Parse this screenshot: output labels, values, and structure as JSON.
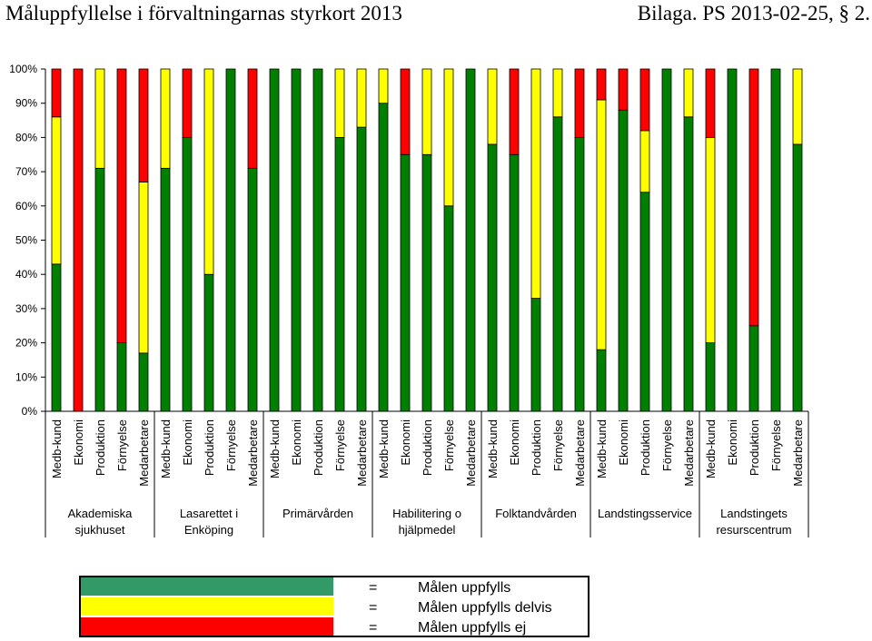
{
  "header": {
    "title": "Måluppfyllelse i förvaltningarnas styrkort 2013",
    "bilaga": "Bilaga. PS 2013-02-25, § 2."
  },
  "chart_data": {
    "type": "bar",
    "stacked": true,
    "y_ticks": [
      "0%",
      "10%",
      "20%",
      "30%",
      "40%",
      "50%",
      "60%",
      "70%",
      "80%",
      "90%",
      "100%"
    ],
    "ylim": [
      0,
      100
    ],
    "grid": false,
    "colors": {
      "green": "#007f00",
      "yellow": "#ffff00",
      "red": "#ff0000"
    },
    "groups": [
      {
        "label": [
          "Akademiska",
          "sjukhuset"
        ],
        "bars": [
          {
            "category": "Medb-kund",
            "green": 43,
            "yellow": 43,
            "red": 14
          },
          {
            "category": "Ekonomi",
            "green": 0,
            "yellow": 0,
            "red": 100
          },
          {
            "category": "Produktion",
            "green": 71,
            "yellow": 29,
            "red": 0
          },
          {
            "category": "Förnyelse",
            "green": 20,
            "yellow": 0,
            "red": 80
          },
          {
            "category": "Medarbetare",
            "green": 17,
            "yellow": 50,
            "red": 33
          }
        ]
      },
      {
        "label": [
          "Lasarettet i",
          "Enköping"
        ],
        "bars": [
          {
            "category": "Medb-kund",
            "green": 71,
            "yellow": 29,
            "red": 0
          },
          {
            "category": "Ekonomi",
            "green": 80,
            "yellow": 0,
            "red": 20
          },
          {
            "category": "Produktion",
            "green": 40,
            "yellow": 60,
            "red": 0
          },
          {
            "category": "Förnyelse",
            "green": 100,
            "yellow": 0,
            "red": 0
          },
          {
            "category": "Medarbetare",
            "green": 71,
            "yellow": 0,
            "red": 29
          }
        ]
      },
      {
        "label": [
          "Primärvården"
        ],
        "bars": [
          {
            "category": "Medb-kund",
            "green": 100,
            "yellow": 0,
            "red": 0
          },
          {
            "category": "Ekonomi",
            "green": 100,
            "yellow": 0,
            "red": 0
          },
          {
            "category": "Produktion",
            "green": 100,
            "yellow": 0,
            "red": 0
          },
          {
            "category": "Förnyelse",
            "green": 80,
            "yellow": 20,
            "red": 0
          },
          {
            "category": "Medarbetare",
            "green": 83,
            "yellow": 17,
            "red": 0
          }
        ]
      },
      {
        "label": [
          "Habilitering o",
          "hjälpmedel"
        ],
        "bars": [
          {
            "category": "Medb-kund",
            "green": 90,
            "yellow": 10,
            "red": 0
          },
          {
            "category": "Ekonomi",
            "green": 75,
            "yellow": 0,
            "red": 25
          },
          {
            "category": "Produktion",
            "green": 75,
            "yellow": 25,
            "red": 0
          },
          {
            "category": "Förnyelse",
            "green": 60,
            "yellow": 40,
            "red": 0
          },
          {
            "category": "Medarbetare",
            "green": 100,
            "yellow": 0,
            "red": 0
          }
        ]
      },
      {
        "label": [
          "Folktandvården"
        ],
        "bars": [
          {
            "category": "Medb-kund",
            "green": 78,
            "yellow": 22,
            "red": 0
          },
          {
            "category": "Ekonomi",
            "green": 75,
            "yellow": 0,
            "red": 25
          },
          {
            "category": "Produktion",
            "green": 33,
            "yellow": 67,
            "red": 0
          },
          {
            "category": "Förnyelse",
            "green": 86,
            "yellow": 14,
            "red": 0
          },
          {
            "category": "Medarbetare",
            "green": 80,
            "yellow": 0,
            "red": 20
          }
        ]
      },
      {
        "label": [
          "Landstingsservice"
        ],
        "bars": [
          {
            "category": "Medb-kund",
            "green": 18,
            "yellow": 73,
            "red": 9
          },
          {
            "category": "Ekonomi",
            "green": 88,
            "yellow": 0,
            "red": 12
          },
          {
            "category": "Produktion",
            "green": 64,
            "yellow": 18,
            "red": 18
          },
          {
            "category": "Förnyelse",
            "green": 100,
            "yellow": 0,
            "red": 0
          },
          {
            "category": "Medarbetare",
            "green": 86,
            "yellow": 14,
            "red": 0
          }
        ]
      },
      {
        "label": [
          "Landstingets",
          "resurscentrum"
        ],
        "bars": [
          {
            "category": "Medb-kund",
            "green": 20,
            "yellow": 60,
            "red": 20
          },
          {
            "category": "Ekonomi",
            "green": 100,
            "yellow": 0,
            "red": 0
          },
          {
            "category": "Produktion",
            "green": 25,
            "yellow": 0,
            "red": 75
          },
          {
            "category": "Förnyelse",
            "green": 100,
            "yellow": 0,
            "red": 0
          },
          {
            "category": "Medarbetare",
            "green": 78,
            "yellow": 22,
            "red": 0
          }
        ]
      }
    ],
    "legend": {
      "placement": "bottom",
      "items": [
        {
          "color": "#339966",
          "eq": "=",
          "text": "Målen uppfylls"
        },
        {
          "color": "#ffff00",
          "eq": "=",
          "text": "Målen uppfylls delvis"
        },
        {
          "color": "#ff0000",
          "eq": "=",
          "text": "Målen uppfylls ej"
        }
      ]
    }
  }
}
